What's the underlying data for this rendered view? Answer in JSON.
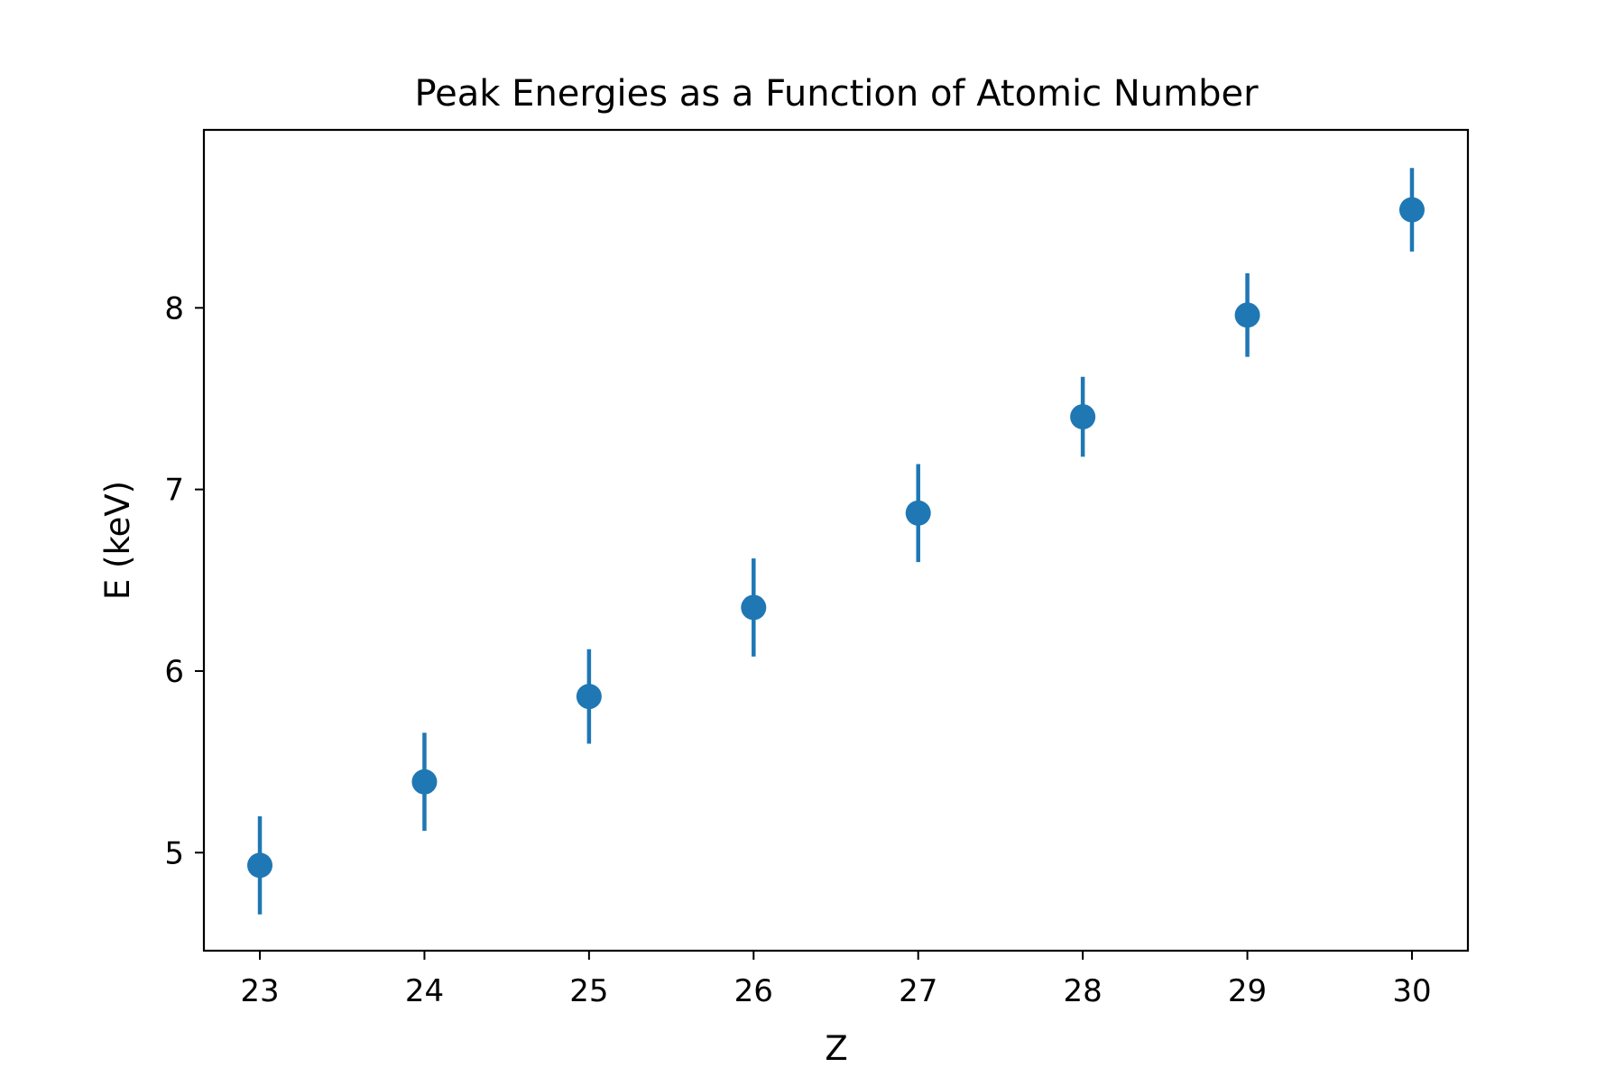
{
  "chart_data": {
    "type": "scatter",
    "title": "Peak Energies as a Function of Atomic Number",
    "xlabel": "Z",
    "ylabel": "E (keV)",
    "xlim": [
      22.66,
      30.34
    ],
    "ylim": [
      4.46,
      8.98
    ],
    "x_ticks": [
      23,
      24,
      25,
      26,
      27,
      28,
      29,
      30
    ],
    "y_ticks": [
      5,
      6,
      7,
      8
    ],
    "grid": false,
    "color": "#1f77b4",
    "series": [
      {
        "x": [
          23,
          24,
          25,
          26,
          27,
          28,
          29,
          30
        ],
        "y": [
          4.93,
          5.39,
          5.86,
          6.35,
          6.87,
          7.4,
          7.96,
          8.54
        ],
        "yerr": [
          0.27,
          0.27,
          0.26,
          0.27,
          0.27,
          0.22,
          0.23,
          0.23
        ]
      }
    ]
  }
}
